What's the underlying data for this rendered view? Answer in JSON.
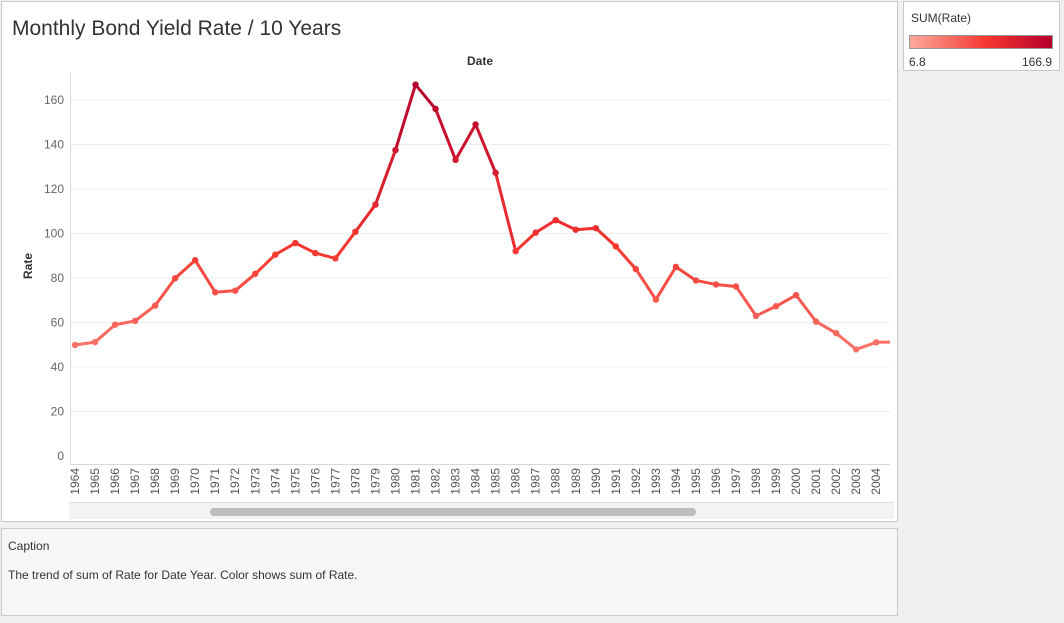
{
  "title": "Monthly Bond Yield Rate / 10 Years",
  "legend": {
    "title": "SUM(Rate)",
    "min_label": "6.8",
    "max_label": "166.9",
    "colors": [
      "#fcaa9c",
      "#f5352e",
      "#b3002d"
    ]
  },
  "caption": {
    "title": "Caption",
    "text": "The trend of sum of Rate for Date Year.  Color shows sum of Rate."
  },
  "chart_data": {
    "type": "line",
    "title": "Monthly Bond Yield Rate / 10 Years",
    "xlabel": "Date",
    "ylabel": "Rate",
    "ylim": [
      0,
      175
    ],
    "yticks": [
      0,
      20,
      40,
      60,
      80,
      100,
      120,
      140,
      160
    ],
    "grid": true,
    "color_range": [
      6.8,
      166.9
    ],
    "x": [
      "1964",
      "1965",
      "1966",
      "1967",
      "1968",
      "1969",
      "1970",
      "1971",
      "1972",
      "1973",
      "1974",
      "1975",
      "1976",
      "1977",
      "1978",
      "1979",
      "1980",
      "1981",
      "1982",
      "1983",
      "1984",
      "1985",
      "1986",
      "1987",
      "1988",
      "1989",
      "1990",
      "1991",
      "1992",
      "1993",
      "1994",
      "1995",
      "1996",
      "1997",
      "1998",
      "1999",
      "2000",
      "2001",
      "2002",
      "2003",
      "2004"
    ],
    "series": [
      {
        "values": [
          49.9,
          51.2,
          59.0,
          60.7,
          67.6,
          79.9,
          88.0,
          73.6,
          74.3,
          81.9,
          90.5,
          95.7,
          91.2,
          88.8,
          100.8,
          113.0,
          137.5,
          166.9,
          156.0,
          133.1,
          149.0,
          127.3,
          92.1,
          100.4,
          106.0,
          101.7,
          102.4,
          94.2,
          84.0,
          70.3,
          85.0,
          78.9,
          77.1,
          76.2,
          63.0,
          67.3,
          72.3,
          60.4,
          55.2,
          47.9,
          51.1
        ]
      }
    ],
    "trailing_value": 51.2
  }
}
